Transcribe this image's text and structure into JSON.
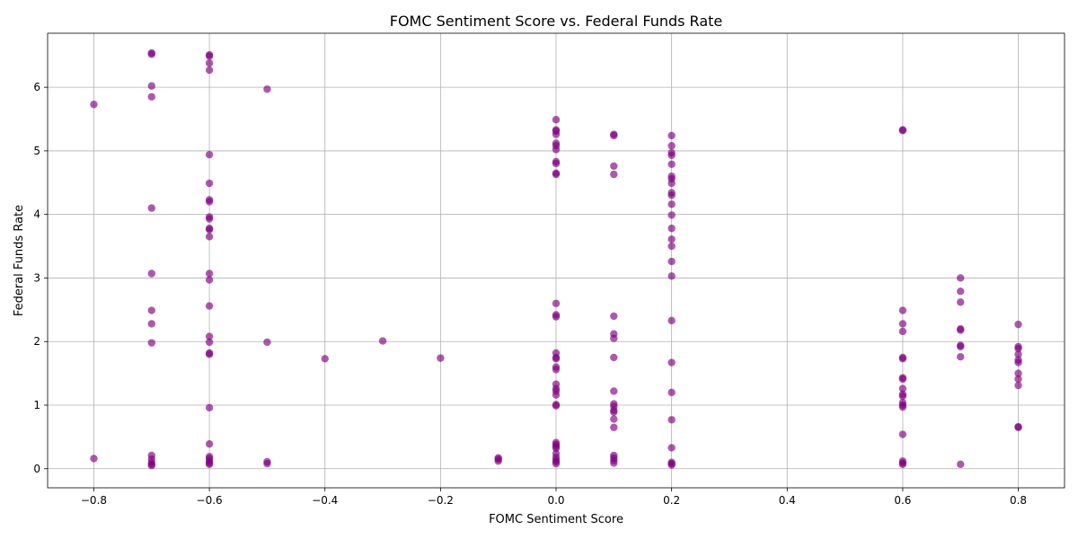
{
  "chart_data": {
    "type": "scatter",
    "title": "FOMC Sentiment Score vs. Federal Funds Rate",
    "xlabel": "FOMC Sentiment Score",
    "ylabel": "Federal Funds Rate",
    "xlim": [
      -0.88,
      0.88
    ],
    "ylim": [
      -0.3,
      6.85
    ],
    "xticks": [
      {
        "value": -0.8,
        "label": "−0.8"
      },
      {
        "value": -0.6,
        "label": "−0.6"
      },
      {
        "value": -0.4,
        "label": "−0.4"
      },
      {
        "value": -0.2,
        "label": "−0.2"
      },
      {
        "value": 0.0,
        "label": "0.0"
      },
      {
        "value": 0.2,
        "label": "0.2"
      },
      {
        "value": 0.4,
        "label": "0.4"
      },
      {
        "value": 0.6,
        "label": "0.6"
      },
      {
        "value": 0.8,
        "label": "0.8"
      }
    ],
    "yticks": [
      {
        "value": 0,
        "label": "0"
      },
      {
        "value": 1,
        "label": "1"
      },
      {
        "value": 2,
        "label": "2"
      },
      {
        "value": 3,
        "label": "3"
      },
      {
        "value": 4,
        "label": "4"
      },
      {
        "value": 5,
        "label": "5"
      },
      {
        "value": 6,
        "label": "6"
      }
    ],
    "grid": true,
    "marker_color": "#800080",
    "marker_opacity": 0.65,
    "points": [
      [
        -0.8,
        5.73
      ],
      [
        -0.8,
        0.16
      ],
      [
        -0.7,
        6.54
      ],
      [
        -0.7,
        6.52
      ],
      [
        -0.7,
        6.02
      ],
      [
        -0.7,
        5.85
      ],
      [
        -0.7,
        4.1
      ],
      [
        -0.7,
        3.07
      ],
      [
        -0.7,
        2.49
      ],
      [
        -0.7,
        2.28
      ],
      [
        -0.7,
        1.98
      ],
      [
        -0.7,
        0.21
      ],
      [
        -0.7,
        0.15
      ],
      [
        -0.7,
        0.1
      ],
      [
        -0.7,
        0.07
      ],
      [
        -0.7,
        0.05
      ],
      [
        -0.6,
        6.51
      ],
      [
        -0.6,
        6.49
      ],
      [
        -0.6,
        6.38
      ],
      [
        -0.6,
        6.27
      ],
      [
        -0.6,
        4.94
      ],
      [
        -0.6,
        4.49
      ],
      [
        -0.6,
        4.23
      ],
      [
        -0.6,
        4.2
      ],
      [
        -0.6,
        3.96
      ],
      [
        -0.6,
        3.93
      ],
      [
        -0.6,
        3.78
      ],
      [
        -0.6,
        3.76
      ],
      [
        -0.6,
        3.65
      ],
      [
        -0.6,
        3.07
      ],
      [
        -0.6,
        2.97
      ],
      [
        -0.6,
        2.56
      ],
      [
        -0.6,
        2.08
      ],
      [
        -0.6,
        1.99
      ],
      [
        -0.6,
        1.82
      ],
      [
        -0.6,
        1.8
      ],
      [
        -0.6,
        0.96
      ],
      [
        -0.6,
        0.39
      ],
      [
        -0.6,
        0.19
      ],
      [
        -0.6,
        0.16
      ],
      [
        -0.6,
        0.12
      ],
      [
        -0.6,
        0.09
      ],
      [
        -0.6,
        0.07
      ],
      [
        -0.5,
        5.97
      ],
      [
        -0.5,
        1.99
      ],
      [
        -0.5,
        0.11
      ],
      [
        -0.5,
        0.08
      ],
      [
        -0.4,
        1.73
      ],
      [
        -0.3,
        2.01
      ],
      [
        -0.2,
        1.74
      ],
      [
        -0.1,
        0.17
      ],
      [
        -0.1,
        0.15
      ],
      [
        -0.1,
        0.12
      ],
      [
        0.0,
        5.49
      ],
      [
        0.0,
        5.33
      ],
      [
        0.0,
        5.31
      ],
      [
        0.0,
        5.26
      ],
      [
        0.0,
        5.12
      ],
      [
        0.0,
        5.08
      ],
      [
        0.0,
        5.02
      ],
      [
        0.0,
        4.83
      ],
      [
        0.0,
        4.8
      ],
      [
        0.0,
        4.65
      ],
      [
        0.0,
        4.63
      ],
      [
        0.0,
        2.6
      ],
      [
        0.0,
        2.42
      ],
      [
        0.0,
        2.39
      ],
      [
        0.0,
        1.82
      ],
      [
        0.0,
        1.75
      ],
      [
        0.0,
        1.73
      ],
      [
        0.0,
        1.6
      ],
      [
        0.0,
        1.56
      ],
      [
        0.0,
        1.33
      ],
      [
        0.0,
        1.26
      ],
      [
        0.0,
        1.22
      ],
      [
        0.0,
        1.16
      ],
      [
        0.0,
        1.01
      ],
      [
        0.0,
        0.99
      ],
      [
        0.0,
        0.41
      ],
      [
        0.0,
        0.38
      ],
      [
        0.0,
        0.35
      ],
      [
        0.0,
        0.32
      ],
      [
        0.0,
        0.24
      ],
      [
        0.0,
        0.18
      ],
      [
        0.0,
        0.14
      ],
      [
        0.0,
        0.11
      ],
      [
        0.0,
        0.08
      ],
      [
        0.1,
        5.26
      ],
      [
        0.1,
        5.24
      ],
      [
        0.1,
        4.76
      ],
      [
        0.1,
        4.63
      ],
      [
        0.1,
        2.4
      ],
      [
        0.1,
        2.12
      ],
      [
        0.1,
        2.05
      ],
      [
        0.1,
        1.75
      ],
      [
        0.1,
        1.22
      ],
      [
        0.1,
        1.02
      ],
      [
        0.1,
        0.98
      ],
      [
        0.1,
        0.92
      ],
      [
        0.1,
        0.89
      ],
      [
        0.1,
        0.78
      ],
      [
        0.1,
        0.65
      ],
      [
        0.1,
        0.21
      ],
      [
        0.1,
        0.17
      ],
      [
        0.1,
        0.13
      ],
      [
        0.1,
        0.09
      ],
      [
        0.2,
        5.24
      ],
      [
        0.2,
        5.08
      ],
      [
        0.2,
        4.97
      ],
      [
        0.2,
        4.93
      ],
      [
        0.2,
        4.79
      ],
      [
        0.2,
        4.6
      ],
      [
        0.2,
        4.56
      ],
      [
        0.2,
        4.49
      ],
      [
        0.2,
        4.34
      ],
      [
        0.2,
        4.3
      ],
      [
        0.2,
        4.16
      ],
      [
        0.2,
        3.99
      ],
      [
        0.2,
        3.78
      ],
      [
        0.2,
        3.61
      ],
      [
        0.2,
        3.5
      ],
      [
        0.2,
        3.26
      ],
      [
        0.2,
        3.03
      ],
      [
        0.2,
        2.33
      ],
      [
        0.2,
        1.67
      ],
      [
        0.2,
        1.2
      ],
      [
        0.2,
        0.77
      ],
      [
        0.2,
        0.33
      ],
      [
        0.2,
        0.1
      ],
      [
        0.2,
        0.08
      ],
      [
        0.2,
        0.06
      ],
      [
        0.6,
        5.33
      ],
      [
        0.6,
        5.32
      ],
      [
        0.6,
        2.49
      ],
      [
        0.6,
        2.28
      ],
      [
        0.6,
        2.16
      ],
      [
        0.6,
        1.75
      ],
      [
        0.6,
        1.73
      ],
      [
        0.6,
        1.43
      ],
      [
        0.6,
        1.41
      ],
      [
        0.6,
        1.26
      ],
      [
        0.6,
        1.17
      ],
      [
        0.6,
        1.14
      ],
      [
        0.6,
        1.04
      ],
      [
        0.6,
        1.0
      ],
      [
        0.6,
        0.97
      ],
      [
        0.6,
        0.54
      ],
      [
        0.6,
        0.12
      ],
      [
        0.6,
        0.09
      ],
      [
        0.6,
        0.07
      ],
      [
        0.7,
        3.0
      ],
      [
        0.7,
        2.79
      ],
      [
        0.7,
        2.62
      ],
      [
        0.7,
        2.2
      ],
      [
        0.7,
        2.18
      ],
      [
        0.7,
        1.94
      ],
      [
        0.7,
        1.92
      ],
      [
        0.7,
        1.76
      ],
      [
        0.7,
        0.07
      ],
      [
        0.8,
        2.27
      ],
      [
        0.8,
        1.92
      ],
      [
        0.8,
        1.89
      ],
      [
        0.8,
        1.8
      ],
      [
        0.8,
        1.71
      ],
      [
        0.8,
        1.67
      ],
      [
        0.8,
        1.5
      ],
      [
        0.8,
        1.41
      ],
      [
        0.8,
        1.31
      ],
      [
        0.8,
        0.66
      ],
      [
        0.8,
        0.65
      ]
    ]
  }
}
